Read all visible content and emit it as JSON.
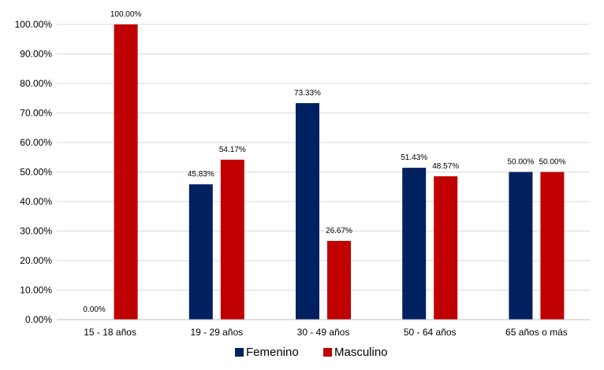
{
  "chart_data": {
    "type": "bar",
    "categories": [
      "15 - 18 años",
      "19 - 29 años",
      "30 - 49 años",
      "50 - 64 años",
      "65 años o más"
    ],
    "series": [
      {
        "name": "Femenino",
        "color": "#002060",
        "values": [
          0.0,
          45.83,
          73.33,
          51.43,
          50.0
        ],
        "labels": [
          "0.00%",
          "45.83%",
          "73.33%",
          "51.43%",
          "50.00%"
        ]
      },
      {
        "name": "Masculino",
        "color": "#C00000",
        "values": [
          100.0,
          54.17,
          26.67,
          48.57,
          50.0
        ],
        "labels": [
          "100.00%",
          "54.17%",
          "26.67%",
          "48.57%",
          "50.00%"
        ]
      }
    ],
    "yticks": [
      "0.00%",
      "10.00%",
      "20.00%",
      "30.00%",
      "40.00%",
      "50.00%",
      "60.00%",
      "70.00%",
      "80.00%",
      "90.00%",
      "100.00%"
    ],
    "ylim": [
      0,
      100
    ],
    "grid": true,
    "legend": "bottom"
  }
}
